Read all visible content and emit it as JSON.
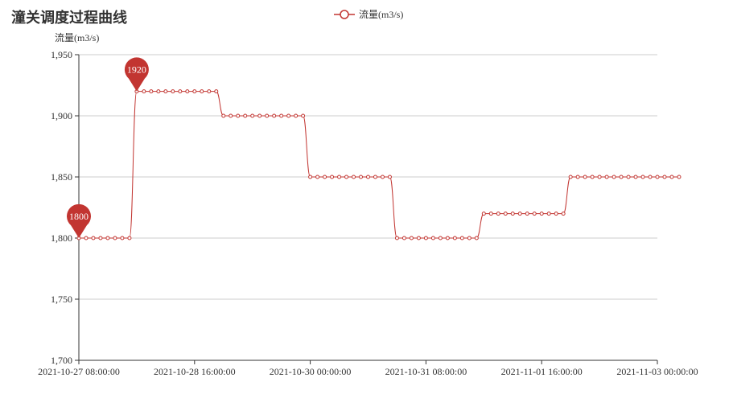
{
  "chart_data": {
    "type": "line",
    "title": "潼关调度过程曲线",
    "legend": [
      "流量(m3/s)"
    ],
    "ylabel": "流量(m3/s)",
    "xlabel": "",
    "ylim": [
      1700,
      1950
    ],
    "yticks": [
      1700,
      1750,
      1800,
      1850,
      1900,
      1950
    ],
    "ytick_labels": [
      "1,700",
      "1,750",
      "1,800",
      "1,850",
      "1,900",
      "1,950"
    ],
    "xlim": [
      "2021-10-27 08:00:00",
      "2021-11-03 00:00:00"
    ],
    "xtick_labels": [
      "2021-10-27 08:00:00",
      "2021-10-28 16:00:00",
      "2021-10-30 00:00:00",
      "2021-10-31 08:00:00",
      "2021-11-01 16:00:00",
      "2021-11-03 00:00:00"
    ],
    "grid": true,
    "color": "#c23531",
    "series": [
      {
        "name": "流量(m3/s)",
        "x_start": "2021-10-27 08:00:00",
        "x_step_hours": 2,
        "values": [
          1800,
          1800,
          1800,
          1800,
          1800,
          1800,
          1800,
          1800,
          1920,
          1920,
          1920,
          1920,
          1920,
          1920,
          1920,
          1920,
          1920,
          1920,
          1920,
          1920,
          1900,
          1900,
          1900,
          1900,
          1900,
          1900,
          1900,
          1900,
          1900,
          1900,
          1900,
          1900,
          1850,
          1850,
          1850,
          1850,
          1850,
          1850,
          1850,
          1850,
          1850,
          1850,
          1850,
          1850,
          1800,
          1800,
          1800,
          1800,
          1800,
          1800,
          1800,
          1800,
          1800,
          1800,
          1800,
          1800,
          1820,
          1820,
          1820,
          1820,
          1820,
          1820,
          1820,
          1820,
          1820,
          1820,
          1820,
          1820,
          1850,
          1850,
          1850,
          1850,
          1850,
          1850,
          1850,
          1850,
          1850,
          1850,
          1850,
          1850,
          1850,
          1850,
          1850,
          1850
        ]
      }
    ],
    "annotations": [
      {
        "type": "max",
        "label": "1920"
      },
      {
        "type": "min",
        "label": "1800"
      }
    ]
  }
}
